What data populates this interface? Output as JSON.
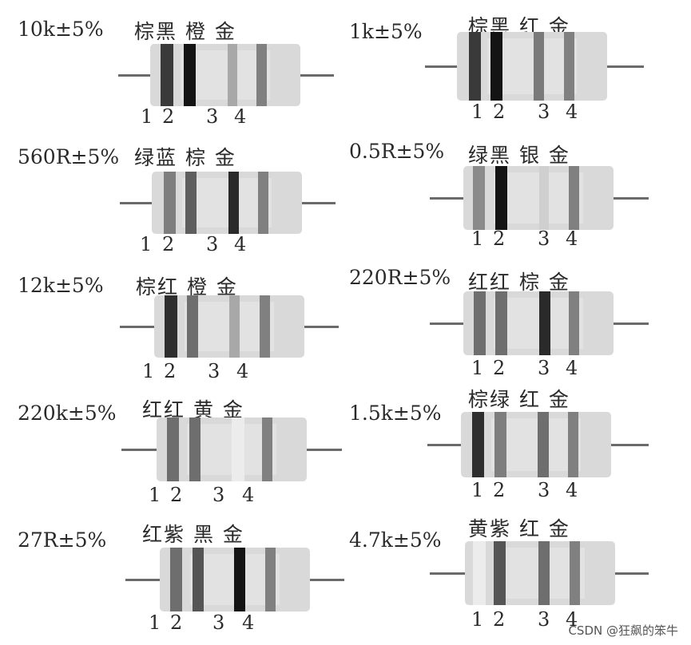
{
  "resistors": [
    {
      "value": "10k±5%",
      "colors": "棕黑  橙 金",
      "numbers": [
        "1",
        "2",
        "3",
        "4"
      ],
      "band_colors": [
        "#3a3a3a",
        "#141414",
        "#a8a8a8",
        "#808080"
      ]
    },
    {
      "value": "1k±5%",
      "colors": "棕黑  红 金",
      "numbers": [
        "1",
        "2",
        "3",
        "4"
      ],
      "band_colors": [
        "#3a3a3a",
        "#141414",
        "#7a7a7a",
        "#808080"
      ]
    },
    {
      "value": "560R±5%",
      "colors": "绿蓝  棕 金",
      "numbers": [
        "1",
        "2",
        "3",
        "4"
      ],
      "band_colors": [
        "#7e7e7e",
        "#5e5e5e",
        "#2a2a2a",
        "#808080"
      ]
    },
    {
      "value": "0.5R±5%",
      "colors": "绿黑  银 金",
      "numbers": [
        "1",
        "2",
        "3",
        "4"
      ],
      "band_colors": [
        "#8a8a8a",
        "#141414",
        "#cfcfcf",
        "#808080"
      ]
    },
    {
      "value": "12k±5%",
      "colors": "棕红  橙 金",
      "numbers": [
        "1",
        "2",
        "3",
        "4"
      ],
      "band_colors": [
        "#2e2e2e",
        "#6e6e6e",
        "#a8a8a8",
        "#808080"
      ]
    },
    {
      "value": "220R±5%",
      "colors": "红红  棕 金",
      "numbers": [
        "1",
        "2",
        "3",
        "4"
      ],
      "band_colors": [
        "#6e6e6e",
        "#6e6e6e",
        "#2a2a2a",
        "#808080"
      ]
    },
    {
      "value": "220k±5%",
      "colors": "红红  黄 金",
      "numbers": [
        "1",
        "2",
        "3",
        "4"
      ],
      "band_colors": [
        "#6e6e6e",
        "#6e6e6e",
        "#ececec",
        "#808080"
      ]
    },
    {
      "value": "1.5k±5%",
      "colors": "棕绿  红 金",
      "numbers": [
        "1",
        "2",
        "3",
        "4"
      ],
      "band_colors": [
        "#2e2e2e",
        "#7e7e7e",
        "#6e6e6e",
        "#808080"
      ]
    },
    {
      "value": "27R±5%",
      "colors": "红紫  黑 金",
      "numbers": [
        "1",
        "2",
        "3",
        "4"
      ],
      "band_colors": [
        "#6e6e6e",
        "#555555",
        "#141414",
        "#808080"
      ]
    },
    {
      "value": "4.7k±5%",
      "colors": "黄紫  红 金",
      "numbers": [
        "1",
        "2",
        "3",
        "4"
      ],
      "band_colors": [
        "#ececec",
        "#555555",
        "#6e6e6e",
        "#808080"
      ]
    }
  ],
  "watermark": "CSDN @狂飙的笨牛"
}
